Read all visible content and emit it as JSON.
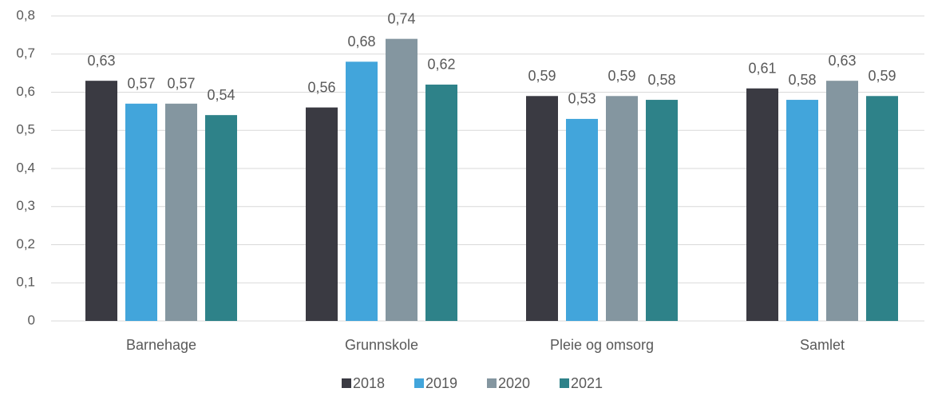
{
  "chart_data": {
    "type": "bar",
    "categories": [
      "Barnehage",
      "Grunnskole",
      "Pleie og omsorg",
      "Samlet"
    ],
    "series": [
      {
        "name": "2018",
        "color": "#3a3a42",
        "values": [
          0.63,
          0.56,
          0.59,
          0.61
        ],
        "value_labels": [
          "0,63",
          "0,56",
          "0,59",
          "0,61"
        ]
      },
      {
        "name": "2019",
        "color": "#42a5db",
        "values": [
          0.57,
          0.68,
          0.53,
          0.58
        ],
        "value_labels": [
          "0,57",
          "0,68",
          "0,53",
          "0,58"
        ]
      },
      {
        "name": "2020",
        "color": "#8496a0",
        "values": [
          0.57,
          0.74,
          0.59,
          0.63
        ],
        "value_labels": [
          "0,57",
          "0,74",
          "0,59",
          "0,63"
        ]
      },
      {
        "name": "2021",
        "color": "#2e8289",
        "values": [
          0.54,
          0.62,
          0.58,
          0.59
        ],
        "value_labels": [
          "0,54",
          "0,62",
          "0,58",
          "0,59"
        ]
      }
    ],
    "ylim": [
      0,
      0.8
    ],
    "yticks": [
      0,
      {
        "value": 0.1,
        "label": "0,1"
      },
      {
        "value": 0.2,
        "label": "0,2"
      },
      {
        "value": 0.3,
        "label": "0,3"
      },
      {
        "value": 0.4,
        "label": "0,4"
      },
      {
        "value": 0.5,
        "label": "0,5"
      },
      {
        "value": 0.6,
        "label": "0,6"
      },
      {
        "value": 0.7,
        "label": "0,7"
      },
      {
        "value": 0.8,
        "label": "0,8"
      }
    ],
    "grid": true,
    "legend": "bottom"
  }
}
